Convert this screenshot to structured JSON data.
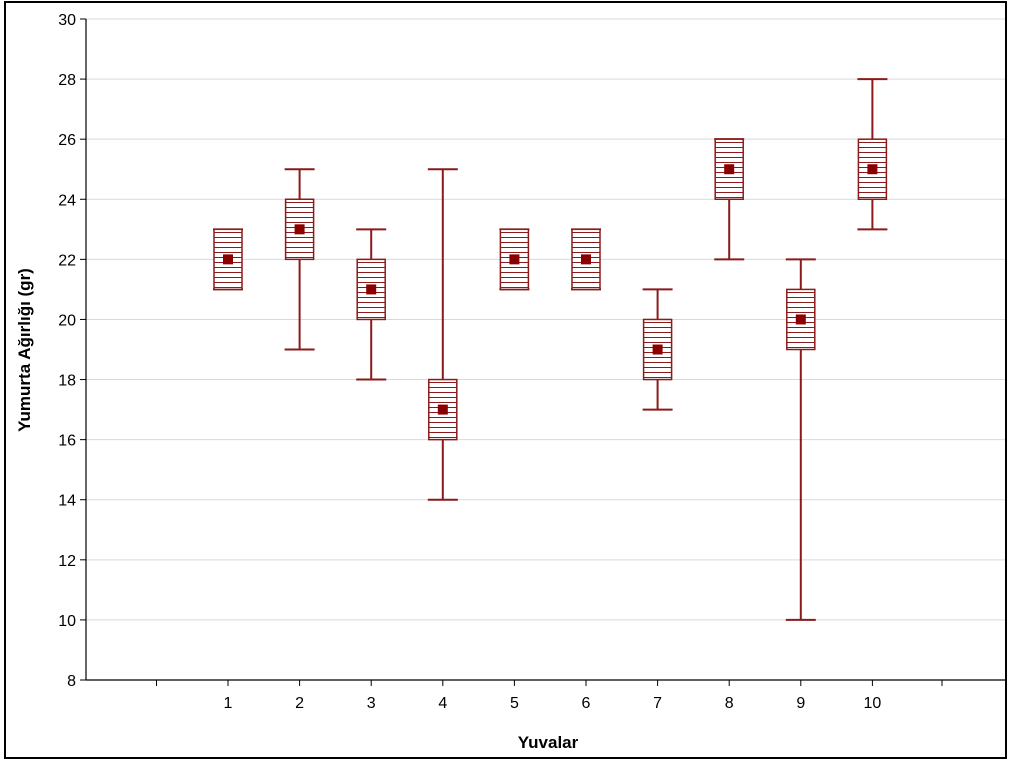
{
  "chart_data": {
    "type": "boxplot",
    "title": "",
    "xlabel": "Yuvalar",
    "ylabel": "Yumurta Ağırlığı (gr)",
    "ylim": [
      8,
      30
    ],
    "yticks": [
      8,
      10,
      12,
      14,
      16,
      18,
      20,
      22,
      24,
      26,
      28,
      30
    ],
    "grid": "horizontal",
    "categories": [
      "1",
      "2",
      "3",
      "4",
      "5",
      "6",
      "7",
      "8",
      "9",
      "10"
    ],
    "series": [
      {
        "category": "1",
        "min": 21,
        "q1": 21,
        "median": 22,
        "q3": 23,
        "max": 23
      },
      {
        "category": "2",
        "min": 19,
        "q1": 22,
        "median": 23,
        "q3": 24,
        "max": 25
      },
      {
        "category": "3",
        "min": 18,
        "q1": 20,
        "median": 21,
        "q3": 22,
        "max": 23
      },
      {
        "category": "4",
        "min": 14,
        "q1": 16,
        "median": 17,
        "q3": 18,
        "max": 25
      },
      {
        "category": "5",
        "min": 21,
        "q1": 21,
        "median": 22,
        "q3": 23,
        "max": 23
      },
      {
        "category": "6",
        "min": 21,
        "q1": 21,
        "median": 22,
        "q3": 23,
        "max": 23
      },
      {
        "category": "7",
        "min": 17,
        "q1": 18,
        "median": 19,
        "q3": 20,
        "max": 21
      },
      {
        "category": "8",
        "min": 22,
        "q1": 24,
        "median": 25,
        "q3": 26,
        "max": 26
      },
      {
        "category": "9",
        "min": 10,
        "q1": 19,
        "median": 20,
        "q3": 21,
        "max": 22
      },
      {
        "category": "10",
        "min": 23,
        "q1": 24,
        "median": 25,
        "q3": 26,
        "max": 28
      }
    ],
    "colors": {
      "box": "#8b1a1a",
      "median_marker": "#8b0000",
      "grid": "#d9d9d9",
      "axis": "#000000"
    }
  }
}
